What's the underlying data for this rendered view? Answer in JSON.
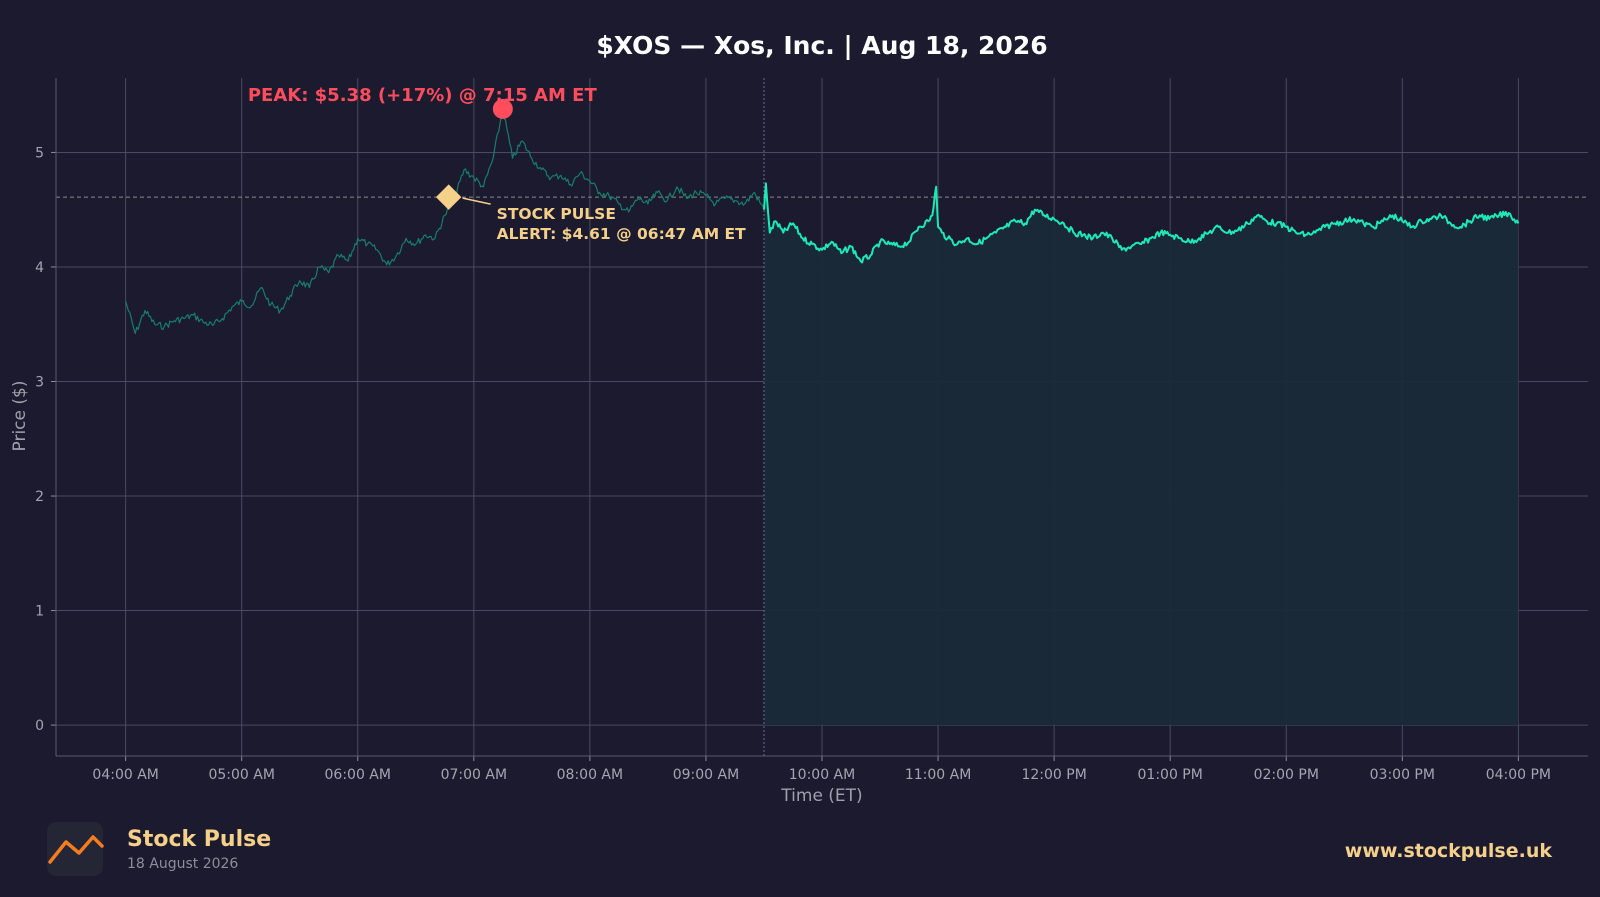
{
  "title": "$XOS — Xos, Inc.  |  Aug 18, 2026",
  "colors": {
    "background": "#1b1a2e",
    "line": "#1de9b6",
    "premarket_line": "#167e6c",
    "fill": "#1a2a38",
    "peak": "#ff4d5e",
    "alert": "#f5d08a"
  },
  "chart_data": {
    "type": "line",
    "xlabel": "Time (ET)",
    "ylabel": "Price ($)",
    "ylim": [
      -0.27,
      5.65
    ],
    "xlim": [
      "03:24",
      "16:36"
    ],
    "grid": true,
    "x_ticks": [
      "04:00 AM",
      "05:00 AM",
      "06:00 AM",
      "07:00 AM",
      "08:00 AM",
      "09:00 AM",
      "10:00 AM",
      "11:00 AM",
      "12:00 PM",
      "01:00 PM",
      "02:00 PM",
      "03:00 PM",
      "04:00 PM"
    ],
    "y_ticks": [
      "0",
      "1",
      "2",
      "3",
      "4",
      "5"
    ],
    "market_open": "09:30",
    "reference_price": 4.61,
    "series": [
      {
        "session": "pre-market",
        "x": [
          "04:00",
          "04:05",
          "04:10",
          "04:15",
          "04:20",
          "04:25",
          "04:30",
          "04:35",
          "04:40",
          "04:45",
          "04:50",
          "04:55",
          "05:00",
          "05:05",
          "05:10",
          "05:15",
          "05:20",
          "05:25",
          "05:30",
          "05:35",
          "05:40",
          "05:45",
          "05:50",
          "05:55",
          "06:00",
          "06:05",
          "06:10",
          "06:15",
          "06:20",
          "06:25",
          "06:30",
          "06:35",
          "06:40",
          "06:45",
          "06:50",
          "06:55",
          "07:00",
          "07:05",
          "07:10",
          "07:15",
          "07:20",
          "07:25",
          "07:30",
          "07:35",
          "07:40",
          "07:45",
          "07:50",
          "07:55",
          "08:00",
          "08:05",
          "08:10",
          "08:15",
          "08:20",
          "08:25",
          "08:30",
          "08:35",
          "08:40",
          "08:45",
          "08:50",
          "08:55",
          "09:00",
          "09:05",
          "09:10",
          "09:15",
          "09:20",
          "09:25",
          "09:30"
        ],
        "values": [
          3.7,
          3.42,
          3.62,
          3.5,
          3.48,
          3.53,
          3.55,
          3.58,
          3.52,
          3.49,
          3.55,
          3.65,
          3.7,
          3.66,
          3.82,
          3.67,
          3.62,
          3.75,
          3.88,
          3.82,
          4.0,
          3.95,
          4.1,
          4.05,
          4.25,
          4.2,
          4.15,
          4.02,
          4.1,
          4.25,
          4.2,
          4.28,
          4.25,
          4.45,
          4.6,
          4.85,
          4.78,
          4.7,
          4.95,
          5.38,
          4.95,
          5.1,
          4.95,
          4.85,
          4.78,
          4.8,
          4.72,
          4.82,
          4.75,
          4.65,
          4.62,
          4.55,
          4.48,
          4.6,
          4.55,
          4.65,
          4.58,
          4.7,
          4.6,
          4.65,
          4.62,
          4.55,
          4.6,
          4.58,
          4.55,
          4.65,
          4.5
        ]
      },
      {
        "session": "regular",
        "x": [
          "09:30",
          "09:31",
          "09:33",
          "09:36",
          "09:40",
          "09:45",
          "09:50",
          "09:55",
          "10:00",
          "10:05",
          "10:10",
          "10:15",
          "10:20",
          "10:25",
          "10:30",
          "10:35",
          "10:40",
          "10:45",
          "10:50",
          "10:55",
          "10:57",
          "10:59",
          "11:00",
          "11:02",
          "11:05",
          "11:10",
          "11:15",
          "11:20",
          "11:25",
          "11:30",
          "11:35",
          "11:40",
          "11:45",
          "11:50",
          "11:55",
          "12:00",
          "12:05",
          "12:10",
          "12:15",
          "12:20",
          "12:25",
          "12:30",
          "12:35",
          "12:40",
          "12:45",
          "12:50",
          "12:55",
          "13:00",
          "13:05",
          "13:10",
          "13:15",
          "13:20",
          "13:25",
          "13:30",
          "13:35",
          "13:40",
          "13:45",
          "13:50",
          "13:55",
          "14:00",
          "14:05",
          "14:10",
          "14:15",
          "14:20",
          "14:25",
          "14:30",
          "14:35",
          "14:40",
          "14:45",
          "14:50",
          "14:55",
          "15:00",
          "15:05",
          "15:10",
          "15:15",
          "15:20",
          "15:25",
          "15:30",
          "15:35",
          "15:40",
          "15:45",
          "15:50",
          "15:55",
          "16:00"
        ],
        "values": [
          4.5,
          4.73,
          4.3,
          4.4,
          4.3,
          4.38,
          4.25,
          4.2,
          4.15,
          4.22,
          4.12,
          4.18,
          4.05,
          4.1,
          4.22,
          4.2,
          4.18,
          4.22,
          4.35,
          4.4,
          4.45,
          4.7,
          4.35,
          4.3,
          4.25,
          4.2,
          4.25,
          4.2,
          4.25,
          4.3,
          4.35,
          4.4,
          4.38,
          4.5,
          4.45,
          4.42,
          4.38,
          4.3,
          4.28,
          4.25,
          4.3,
          4.25,
          4.15,
          4.18,
          4.2,
          4.25,
          4.3,
          4.28,
          4.25,
          4.22,
          4.25,
          4.3,
          4.35,
          4.3,
          4.32,
          4.38,
          4.45,
          4.4,
          4.38,
          4.35,
          4.3,
          4.28,
          4.3,
          4.35,
          4.38,
          4.4,
          4.42,
          4.38,
          4.35,
          4.4,
          4.45,
          4.4,
          4.35,
          4.4,
          4.42,
          4.45,
          4.38,
          4.35,
          4.4,
          4.45,
          4.42,
          4.45,
          4.47,
          4.38
        ]
      }
    ],
    "annotations": {
      "peak": {
        "label": "PEAK: $5.38 (+17%) @ 7:15 AM ET",
        "x": "07:15",
        "y": 5.38
      },
      "alert": {
        "line1": "STOCK PULSE",
        "line2": "ALERT: $4.61 @ 06:47 AM ET",
        "x": "06:47",
        "y": 4.61
      }
    }
  },
  "footer": {
    "brand_name": "Stock Pulse",
    "brand_date": "18 August 2026",
    "website": "www.stockpulse.uk"
  }
}
